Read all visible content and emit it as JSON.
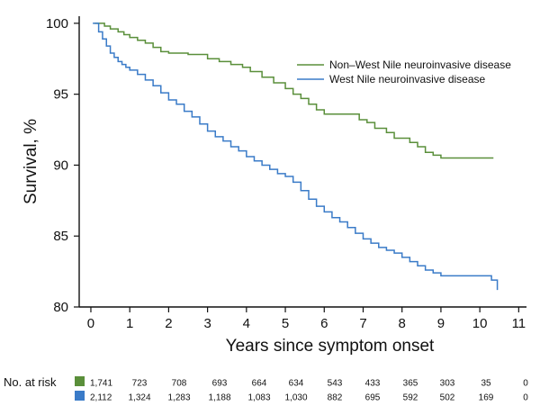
{
  "chart_data": {
    "type": "line",
    "step": true,
    "title": "",
    "xlabel": "Years since symptom onset",
    "ylabel": "Survival, %",
    "xlim": [
      -0.3,
      11.2
    ],
    "ylim": [
      80,
      100.5
    ],
    "xticks": [
      "0",
      "1",
      "2",
      "3",
      "4",
      "5",
      "6",
      "7",
      "8",
      "9",
      "10",
      "11"
    ],
    "yticks": [
      "80",
      "85",
      "90",
      "95",
      "100"
    ],
    "legend_position": "top-right",
    "series": [
      {
        "name": "Non–West Nile neuroinvasive disease",
        "color": "#5a8f3a",
        "x": [
          0.1,
          0.35,
          0.5,
          0.7,
          0.85,
          1.0,
          1.2,
          1.4,
          1.6,
          1.8,
          2.0,
          2.5,
          3.0,
          3.3,
          3.6,
          3.9,
          4.1,
          4.4,
          4.7,
          5.0,
          5.2,
          5.4,
          5.6,
          5.8,
          6.0,
          6.5,
          6.9,
          7.1,
          7.3,
          7.6,
          7.8,
          8.2,
          8.4,
          8.6,
          8.8,
          9.0,
          10.35
        ],
        "y": [
          100,
          99.8,
          99.6,
          99.4,
          99.2,
          99.0,
          98.8,
          98.6,
          98.3,
          98.0,
          97.9,
          97.8,
          97.5,
          97.3,
          97.1,
          96.9,
          96.6,
          96.2,
          95.8,
          95.4,
          95.0,
          94.7,
          94.3,
          93.9,
          93.6,
          93.6,
          93.2,
          93.0,
          92.6,
          92.3,
          91.9,
          91.6,
          91.3,
          90.9,
          90.7,
          90.5,
          90.5
        ]
      },
      {
        "name": "West Nile neuroinvasive disease",
        "color": "#3a7bc8",
        "x": [
          0.05,
          0.2,
          0.3,
          0.4,
          0.5,
          0.6,
          0.7,
          0.8,
          0.9,
          1.0,
          1.2,
          1.4,
          1.6,
          1.8,
          2.0,
          2.2,
          2.4,
          2.6,
          2.8,
          3.0,
          3.2,
          3.4,
          3.6,
          3.8,
          4.0,
          4.2,
          4.4,
          4.6,
          4.8,
          5.0,
          5.2,
          5.4,
          5.6,
          5.8,
          6.0,
          6.2,
          6.4,
          6.6,
          6.8,
          7.0,
          7.2,
          7.4,
          7.6,
          7.8,
          8.0,
          8.2,
          8.4,
          8.6,
          8.8,
          9.0,
          10.3,
          10.45
        ],
        "y": [
          100,
          99.4,
          98.9,
          98.4,
          97.9,
          97.6,
          97.3,
          97.1,
          96.9,
          96.7,
          96.4,
          96.0,
          95.6,
          95.1,
          94.6,
          94.3,
          93.8,
          93.4,
          92.9,
          92.4,
          92.0,
          91.7,
          91.3,
          91.0,
          90.6,
          90.3,
          90.0,
          89.7,
          89.4,
          89.2,
          88.8,
          88.2,
          87.6,
          87.1,
          86.7,
          86.3,
          86.0,
          85.6,
          85.2,
          84.8,
          84.5,
          84.2,
          84.0,
          83.8,
          83.5,
          83.2,
          82.9,
          82.6,
          82.4,
          82.2,
          81.9,
          81.2
        ]
      }
    ],
    "risk_table": {
      "title": "No. at risk",
      "rows": [
        {
          "color": "#5a8f3a",
          "values": [
            "1,741",
            "723",
            "708",
            "693",
            "664",
            "634",
            "543",
            "433",
            "365",
            "303",
            "35",
            "0"
          ]
        },
        {
          "color": "#3a7bc8",
          "values": [
            "2,112",
            "1,324",
            "1,283",
            "1,188",
            "1,083",
            "1,030",
            "882",
            "695",
            "592",
            "502",
            "169",
            "0"
          ]
        }
      ]
    }
  }
}
